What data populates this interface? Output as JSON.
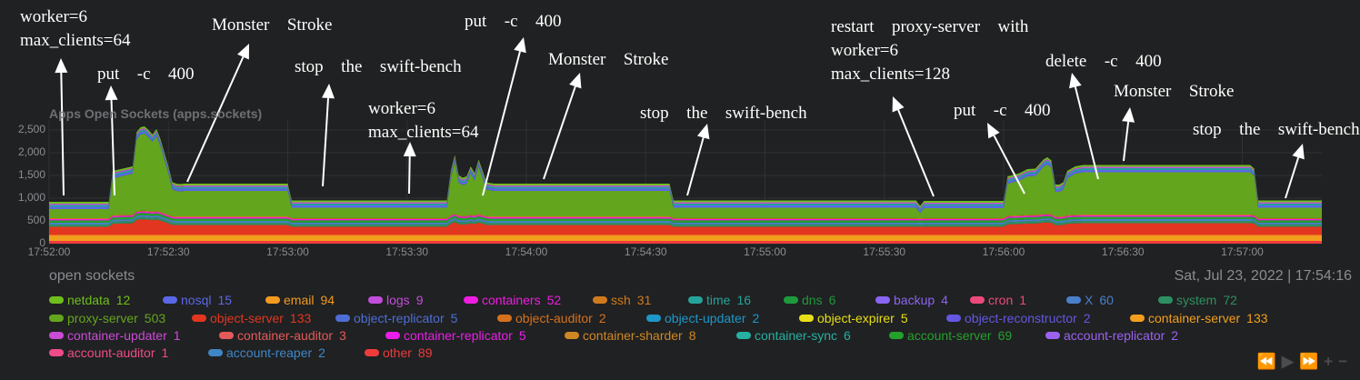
{
  "chart_data": {
    "type": "area",
    "title": "Apps Open Sockets (apps.sockets)",
    "ylim": [
      0,
      2700
    ],
    "y_ticks": [
      "0",
      "500",
      "1,000",
      "1,500",
      "2,000",
      "2,500"
    ],
    "x_ticks": [
      "17:52:00",
      "17:52:30",
      "17:53:00",
      "17:53:30",
      "17:54:00",
      "17:54:30",
      "17:55:00",
      "17:55:30",
      "17:56:00",
      "17:56:30",
      "17:57:00"
    ],
    "grid": true,
    "total_series": {
      "x": [
        "17:52:00",
        "17:52:15",
        "17:52:16",
        "17:52:21",
        "17:52:22",
        "17:52:23",
        "17:52:24",
        "17:52:25",
        "17:52:26",
        "17:52:27",
        "17:52:28",
        "17:52:29",
        "17:52:30",
        "17:52:31",
        "17:52:32",
        "17:52:33",
        "17:52:34",
        "17:52:35",
        "17:53:00",
        "17:53:01",
        "17:53:40",
        "17:53:41",
        "17:53:42",
        "17:53:43",
        "17:53:44",
        "17:53:45",
        "17:53:46",
        "17:53:47",
        "17:53:48",
        "17:53:49",
        "17:53:50",
        "17:53:51",
        "17:53:52",
        "17:54:00",
        "17:54:20",
        "17:54:36",
        "17:54:37",
        "17:55:38",
        "17:55:39",
        "17:55:40",
        "17:56:00",
        "17:56:01",
        "17:56:02",
        "17:56:04",
        "17:56:06",
        "17:56:08",
        "17:56:10",
        "17:56:11",
        "17:56:12",
        "17:56:13",
        "17:56:14",
        "17:56:15",
        "17:56:16",
        "17:56:18",
        "17:56:20",
        "17:57:02",
        "17:57:03",
        "17:57:04",
        "17:57:20"
      ],
      "total": [
        920,
        920,
        1600,
        1700,
        2450,
        2560,
        2580,
        2500,
        2400,
        2520,
        2300,
        2000,
        1700,
        1350,
        1320,
        1310,
        1320,
        1320,
        1320,
        950,
        950,
        1600,
        1950,
        1500,
        1450,
        1480,
        1700,
        1550,
        1850,
        1600,
        1350,
        1330,
        1320,
        1320,
        1320,
        1320,
        950,
        950,
        830,
        940,
        940,
        1480,
        1500,
        1550,
        1640,
        1650,
        1850,
        1900,
        1830,
        1300,
        1300,
        1350,
        1600,
        1700,
        1730,
        1730,
        1650,
        950,
        950
      ]
    },
    "annotations": [
      "worker=6\nmax_clients=64",
      "put  -c  400",
      "Monster  Stroke",
      "stop  the  swift-bench",
      "worker=6\nmax_clients=64",
      "put  -c  400",
      "Monster  Stroke",
      "stop  the  swift-bench",
      "restart  proxy-server  with\nworker=6\nmax_clients=128",
      "put  -c  400",
      "delete  -c  400",
      "Monster  Stroke",
      "stop  the  swift-bench"
    ],
    "legend": [
      {
        "name": "netdata",
        "value": "12",
        "color": "#6fbf1c"
      },
      {
        "name": "nosql",
        "value": "15",
        "color": "#5a67e6"
      },
      {
        "name": "email",
        "value": "94",
        "color": "#f29a1f"
      },
      {
        "name": "logs",
        "value": "9",
        "color": "#c24ddb"
      },
      {
        "name": "containers",
        "value": "52",
        "color": "#ee1de2"
      },
      {
        "name": "ssh",
        "value": "31",
        "color": "#cf7a1d"
      },
      {
        "name": "time",
        "value": "16",
        "color": "#25a39b"
      },
      {
        "name": "dns",
        "value": "6",
        "color": "#1e9a3d"
      },
      {
        "name": "backup",
        "value": "4",
        "color": "#8a64f2"
      },
      {
        "name": "cron",
        "value": "1",
        "color": "#ec4a7a"
      },
      {
        "name": "X",
        "value": "60",
        "color": "#4a7fc9"
      },
      {
        "name": "system",
        "value": "72",
        "color": "#2e8f62"
      },
      {
        "name": "proxy-server",
        "value": "503",
        "color": "#64a51e"
      },
      {
        "name": "object-server",
        "value": "133",
        "color": "#e23620"
      },
      {
        "name": "object-replicator",
        "value": "5",
        "color": "#4d6ed6"
      },
      {
        "name": "object-auditor",
        "value": "2",
        "color": "#d5711d"
      },
      {
        "name": "object-updater",
        "value": "2",
        "color": "#1d97c9"
      },
      {
        "name": "object-expirer",
        "value": "5",
        "color": "#e8df16"
      },
      {
        "name": "object-reconstructor",
        "value": "2",
        "color": "#6457e0"
      },
      {
        "name": "container-server",
        "value": "133",
        "color": "#f29f1d"
      },
      {
        "name": "container-updater",
        "value": "1",
        "color": "#c94bd6"
      },
      {
        "name": "container-auditor",
        "value": "3",
        "color": "#e35a5a"
      },
      {
        "name": "container-replicator",
        "value": "5",
        "color": "#ea1eea"
      },
      {
        "name": "container-sharder",
        "value": "8",
        "color": "#cf8722"
      },
      {
        "name": "container-sync",
        "value": "6",
        "color": "#25b0a2"
      },
      {
        "name": "account-server",
        "value": "69",
        "color": "#24a12c"
      },
      {
        "name": "account-replicator",
        "value": "2",
        "color": "#9b62f0"
      },
      {
        "name": "account-auditor",
        "value": "1",
        "color": "#ee4c88"
      },
      {
        "name": "account-reaper",
        "value": "2",
        "color": "#3f86c6"
      },
      {
        "name": "other",
        "value": "89",
        "color": "#f03b3b"
      }
    ]
  },
  "footer": {
    "chart_family_label": "open sockets",
    "date": "Sat, Jul 23, 2022",
    "separator": "|",
    "time": "17:54:16"
  },
  "controls": {
    "rewind_icon": "⏪",
    "play_icon": "▶",
    "forward_icon": "⏩",
    "zoom_in_icon": "+",
    "zoom_out_icon": "−"
  }
}
